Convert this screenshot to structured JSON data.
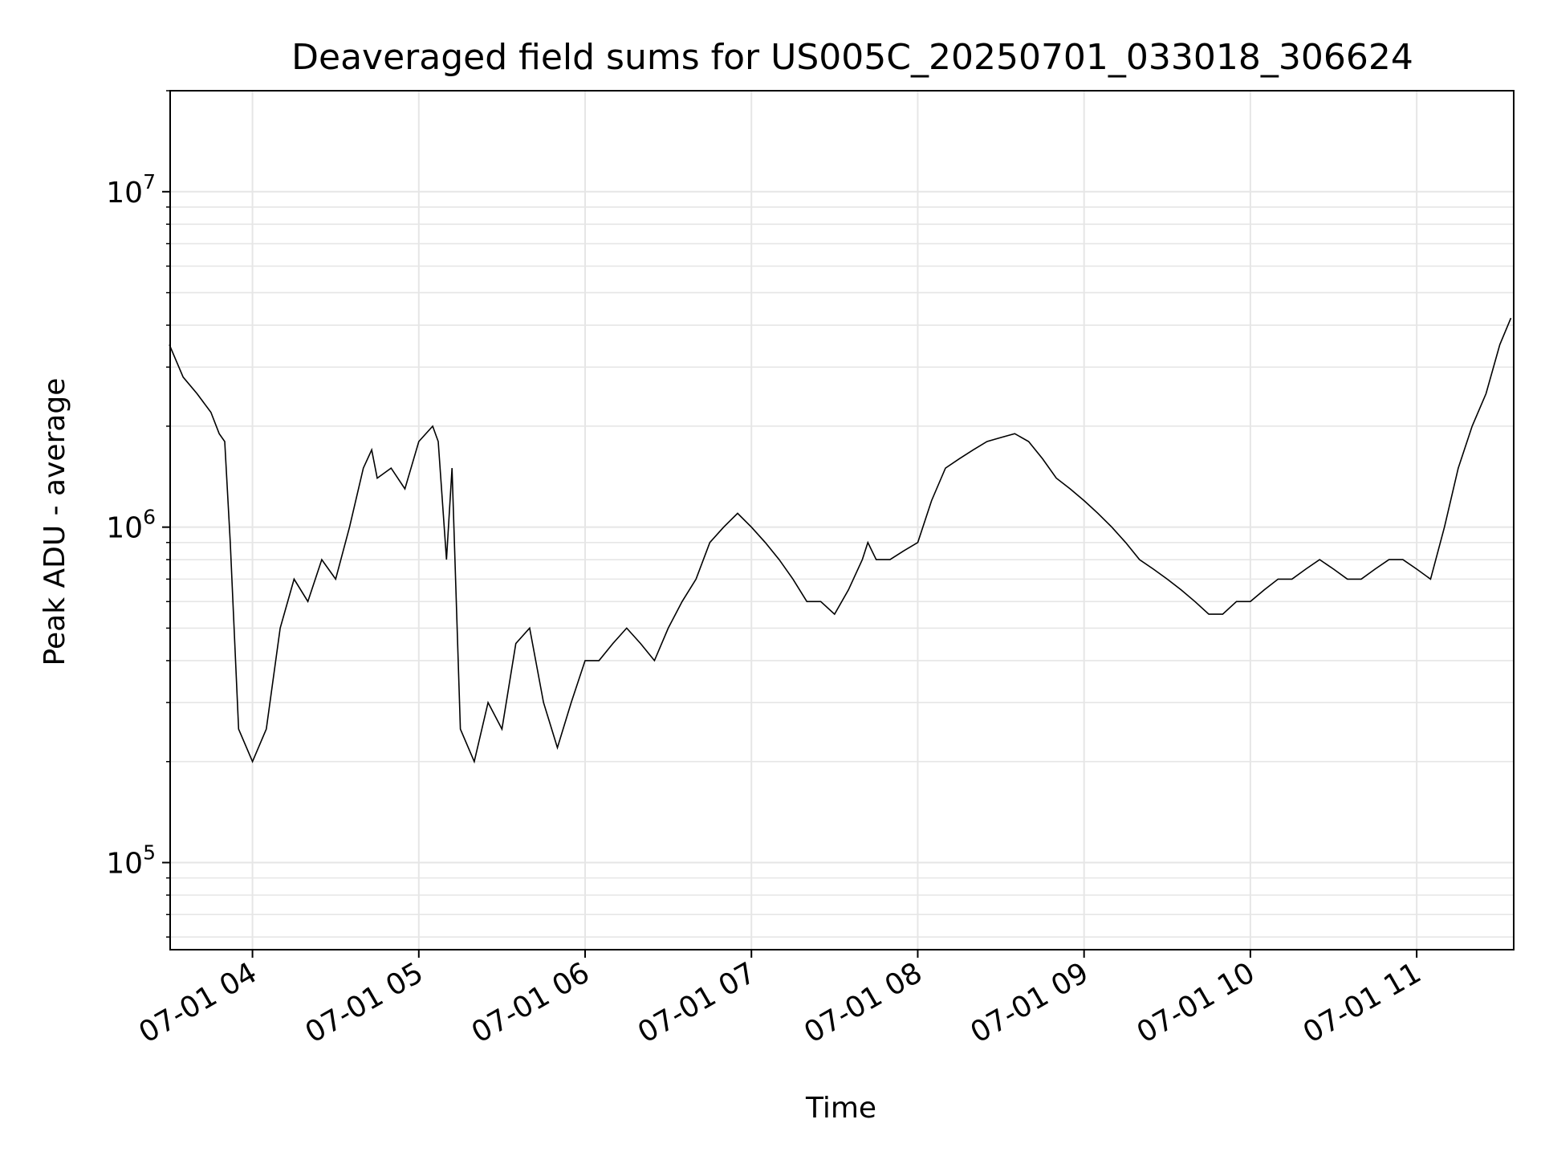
{
  "chart_data": {
    "type": "line",
    "title": "Deaveraged field sums for US005C_20250701_033018_306624",
    "xlabel": "Time",
    "ylabel": "Peak ADU - average",
    "yscale": "log",
    "grid": true,
    "line_color": "#000000",
    "xlim": [
      "2025-07-01 03:30:18",
      "2025-07-01 11:35:00"
    ],
    "ylim": [
      55000,
      20000000
    ],
    "x_ticks": [
      {
        "value": "2025-07-01 04:00",
        "label": "07-01 04"
      },
      {
        "value": "2025-07-01 05:00",
        "label": "07-01 05"
      },
      {
        "value": "2025-07-01 06:00",
        "label": "07-01 06"
      },
      {
        "value": "2025-07-01 07:00",
        "label": "07-01 07"
      },
      {
        "value": "2025-07-01 08:00",
        "label": "07-01 08"
      },
      {
        "value": "2025-07-01 09:00",
        "label": "07-01 09"
      },
      {
        "value": "2025-07-01 10:00",
        "label": "07-01 10"
      },
      {
        "value": "2025-07-01 11:00",
        "label": "07-01 11"
      }
    ],
    "y_ticks": [
      {
        "value": 100000,
        "base": "10",
        "exp": "5"
      },
      {
        "value": 1000000,
        "base": "10",
        "exp": "6"
      },
      {
        "value": 10000000,
        "base": "10",
        "exp": "7"
      }
    ],
    "series": [
      {
        "x": [
          "2025-07-01 03:30",
          "2025-07-01 03:35",
          "2025-07-01 03:40",
          "2025-07-01 03:45",
          "2025-07-01 03:48",
          "2025-07-01 03:50",
          "2025-07-01 03:52",
          "2025-07-01 03:55",
          "2025-07-01 04:00",
          "2025-07-01 04:05",
          "2025-07-01 04:10",
          "2025-07-01 04:15",
          "2025-07-01 04:20",
          "2025-07-01 04:25",
          "2025-07-01 04:30",
          "2025-07-01 04:35",
          "2025-07-01 04:40",
          "2025-07-01 04:43",
          "2025-07-01 04:45",
          "2025-07-01 04:50",
          "2025-07-01 04:55",
          "2025-07-01 05:00",
          "2025-07-01 05:05",
          "2025-07-01 05:07",
          "2025-07-01 05:10",
          "2025-07-01 05:12",
          "2025-07-01 05:15",
          "2025-07-01 05:20",
          "2025-07-01 05:25",
          "2025-07-01 05:30",
          "2025-07-01 05:35",
          "2025-07-01 05:40",
          "2025-07-01 05:45",
          "2025-07-01 05:50",
          "2025-07-01 05:55",
          "2025-07-01 06:00",
          "2025-07-01 06:05",
          "2025-07-01 06:10",
          "2025-07-01 06:15",
          "2025-07-01 06:20",
          "2025-07-01 06:25",
          "2025-07-01 06:30",
          "2025-07-01 06:35",
          "2025-07-01 06:40",
          "2025-07-01 06:45",
          "2025-07-01 06:50",
          "2025-07-01 06:55",
          "2025-07-01 07:00",
          "2025-07-01 07:05",
          "2025-07-01 07:10",
          "2025-07-01 07:15",
          "2025-07-01 07:20",
          "2025-07-01 07:25",
          "2025-07-01 07:30",
          "2025-07-01 07:35",
          "2025-07-01 07:40",
          "2025-07-01 07:42",
          "2025-07-01 07:45",
          "2025-07-01 07:50",
          "2025-07-01 07:55",
          "2025-07-01 08:00",
          "2025-07-01 08:05",
          "2025-07-01 08:10",
          "2025-07-01 08:15",
          "2025-07-01 08:20",
          "2025-07-01 08:25",
          "2025-07-01 08:30",
          "2025-07-01 08:35",
          "2025-07-01 08:40",
          "2025-07-01 08:45",
          "2025-07-01 08:50",
          "2025-07-01 08:55",
          "2025-07-01 09:00",
          "2025-07-01 09:05",
          "2025-07-01 09:10",
          "2025-07-01 09:15",
          "2025-07-01 09:20",
          "2025-07-01 09:25",
          "2025-07-01 09:30",
          "2025-07-01 09:35",
          "2025-07-01 09:40",
          "2025-07-01 09:45",
          "2025-07-01 09:50",
          "2025-07-01 09:55",
          "2025-07-01 10:00",
          "2025-07-01 10:05",
          "2025-07-01 10:10",
          "2025-07-01 10:15",
          "2025-07-01 10:20",
          "2025-07-01 10:25",
          "2025-07-01 10:30",
          "2025-07-01 10:35",
          "2025-07-01 10:40",
          "2025-07-01 10:45",
          "2025-07-01 10:50",
          "2025-07-01 10:55",
          "2025-07-01 11:00",
          "2025-07-01 11:05",
          "2025-07-01 11:10",
          "2025-07-01 11:15",
          "2025-07-01 11:20",
          "2025-07-01 11:25",
          "2025-07-01 11:30",
          "2025-07-01 11:34"
        ],
        "values": [
          3500000,
          2800000,
          2500000,
          2200000,
          1900000,
          1800000,
          900000,
          250000,
          200000,
          250000,
          500000,
          700000,
          600000,
          800000,
          700000,
          1000000,
          1500000,
          1700000,
          1400000,
          1500000,
          1300000,
          1800000,
          2000000,
          1800000,
          800000,
          1500000,
          250000,
          200000,
          300000,
          250000,
          450000,
          500000,
          300000,
          220000,
          300000,
          400000,
          400000,
          450000,
          500000,
          450000,
          400000,
          500000,
          600000,
          700000,
          900000,
          1000000,
          1100000,
          1000000,
          900000,
          800000,
          700000,
          600000,
          600000,
          550000,
          650000,
          800000,
          900000,
          800000,
          800000,
          850000,
          900000,
          1200000,
          1500000,
          1600000,
          1700000,
          1800000,
          1850000,
          1900000,
          1800000,
          1600000,
          1400000,
          1300000,
          1200000,
          1100000,
          1000000,
          900000,
          800000,
          750000,
          700000,
          650000,
          600000,
          550000,
          550000,
          600000,
          600000,
          650000,
          700000,
          700000,
          750000,
          800000,
          750000,
          700000,
          700000,
          750000,
          800000,
          800000,
          750000,
          700000,
          1000000,
          1500000,
          2000000,
          2500000,
          3500000,
          4200000
        ]
      }
    ]
  }
}
